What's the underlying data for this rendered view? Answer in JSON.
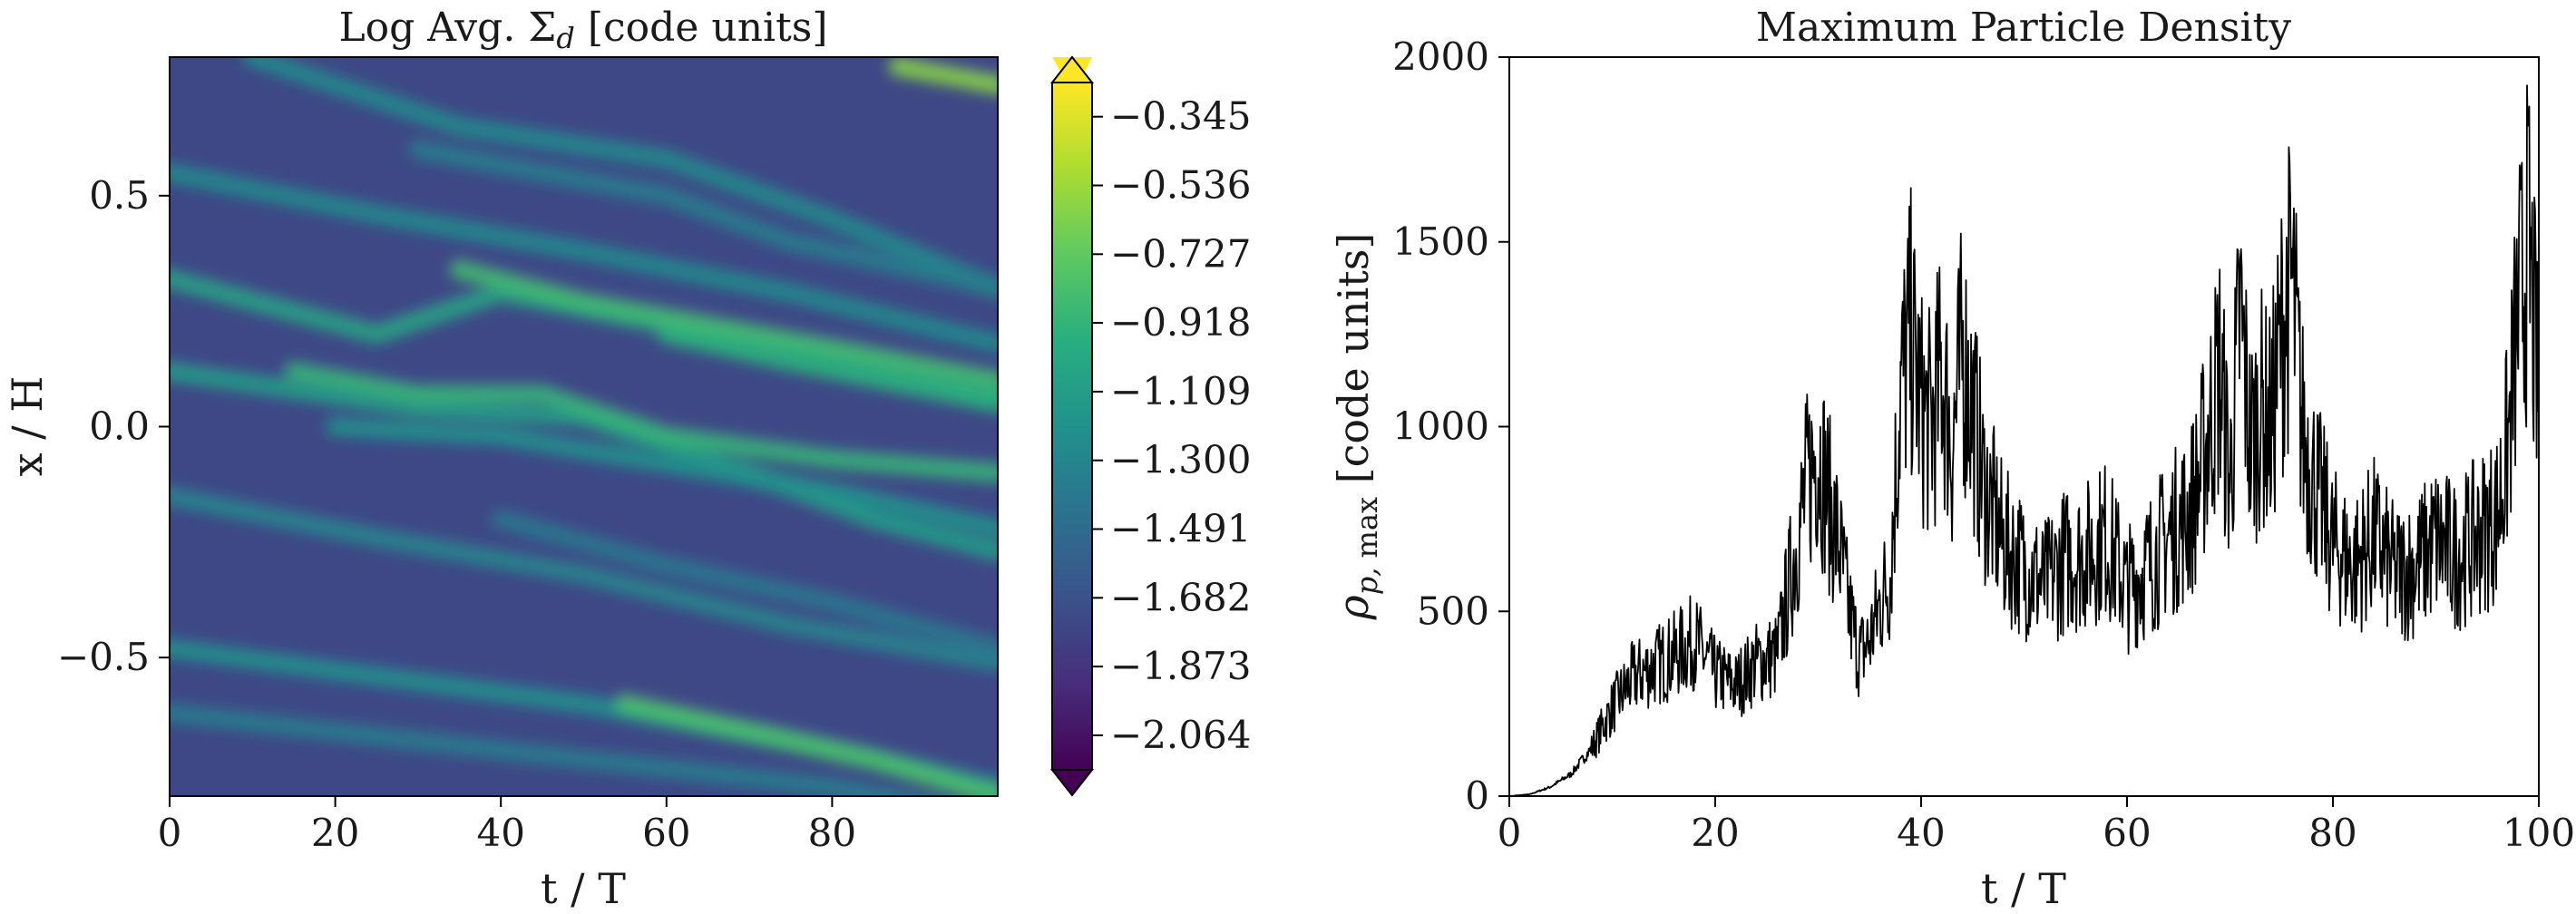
{
  "chart_data": [
    {
      "type": "heatmap",
      "title": "Log Avg. Σ_d [code units]",
      "xlabel": "t / T",
      "ylabel": "x / H",
      "xlim": [
        0,
        100
      ],
      "ylim": [
        -0.8,
        0.8
      ],
      "xticks": [
        "0",
        "20",
        "40",
        "60",
        "80"
      ],
      "yticks": [
        "0.5",
        "0.0",
        "−0.5"
      ],
      "colormap": "viridis",
      "colorbar": {
        "extend": "both",
        "range": [
          -2.16,
          -0.25
        ],
        "ticks": [
          "−0.345",
          "−0.536",
          "−0.727",
          "−0.918",
          "−1.109",
          "−1.300",
          "−1.491",
          "−1.682",
          "−1.873",
          "−2.064"
        ],
        "tick_values": [
          -0.345,
          -0.536,
          -0.727,
          -0.918,
          -1.109,
          -1.3,
          -1.491,
          -1.682,
          -1.873,
          -2.064
        ]
      },
      "background_value": -1.75,
      "filaments": [
        {
          "t": [
            0,
            25,
            50,
            75,
            100
          ],
          "x": [
            0.55,
            0.46,
            0.38,
            0.29,
            0.18
          ],
          "value": -1.25
        },
        {
          "t": [
            0,
            25,
            40,
            60,
            80,
            100
          ],
          "x": [
            0.32,
            0.2,
            0.29,
            0.22,
            0.15,
            0.07
          ],
          "value": -1.05
        },
        {
          "t": [
            0,
            30,
            50,
            70,
            85,
            100
          ],
          "x": [
            0.12,
            0.04,
            0.02,
            -0.1,
            -0.2,
            -0.27
          ],
          "value": -1.1
        },
        {
          "t": [
            0,
            25,
            50,
            75,
            100
          ],
          "x": [
            -0.15,
            -0.24,
            -0.32,
            -0.43,
            -0.51
          ],
          "value": -1.3
        },
        {
          "t": [
            0,
            25,
            50,
            75,
            100
          ],
          "x": [
            -0.48,
            -0.54,
            -0.6,
            -0.68,
            -0.78
          ],
          "value": -1.2
        },
        {
          "t": [
            10,
            35,
            60,
            80,
            100
          ],
          "x": [
            0.8,
            0.65,
            0.58,
            0.45,
            0.3
          ],
          "value": -1.25
        },
        {
          "t": [
            0,
            20,
            40,
            60,
            80,
            100
          ],
          "x": [
            -0.62,
            -0.66,
            -0.7,
            -0.74,
            -0.78,
            -0.85
          ],
          "value": -1.35
        },
        {
          "t": [
            60,
            75,
            100
          ],
          "x": [
            0.2,
            0.14,
            0.05
          ],
          "value": -0.95
        },
        {
          "t": [
            35,
            50,
            65,
            80,
            100
          ],
          "x": [
            0.34,
            0.27,
            0.22,
            0.17,
            0.1
          ],
          "value": -0.85
        },
        {
          "t": [
            15,
            30,
            45,
            60,
            80,
            100
          ],
          "x": [
            0.12,
            0.07,
            0.07,
            -0.02,
            -0.07,
            -0.1
          ],
          "value": -0.9
        },
        {
          "t": [
            20,
            40,
            60,
            80,
            100
          ],
          "x": [
            0.0,
            -0.02,
            -0.08,
            -0.14,
            -0.22
          ],
          "value": -1.2
        },
        {
          "t": [
            55,
            70,
            85,
            100
          ],
          "x": [
            -0.6,
            -0.66,
            -0.72,
            -0.8
          ],
          "value": -0.8
        },
        {
          "t": [
            88,
            94,
            100
          ],
          "x": [
            0.78,
            0.76,
            0.74
          ],
          "value": -0.6
        },
        {
          "t": [
            30,
            45,
            60,
            75,
            100
          ],
          "x": [
            0.6,
            0.55,
            0.5,
            0.4,
            0.3
          ],
          "value": -1.35
        },
        {
          "t": [
            40,
            60,
            80,
            100
          ],
          "x": [
            -0.2,
            -0.3,
            -0.38,
            -0.48
          ],
          "value": -1.4
        }
      ]
    },
    {
      "type": "line",
      "title": "Maximum Particle Density",
      "xlabel": "t / T",
      "ylabel": "ρ_{p, max} [code units]",
      "xlim": [
        0,
        100
      ],
      "ylim": [
        0,
        2000
      ],
      "xticks": [
        0,
        20,
        40,
        60,
        80,
        100
      ],
      "yticks": [
        0,
        500,
        1000,
        1500,
        2000
      ],
      "series": [
        {
          "color": "#000000",
          "x": [
            0,
            2,
            4,
            6,
            8,
            10,
            12,
            14,
            16,
            18,
            20,
            22,
            24,
            26,
            28,
            29,
            30,
            31,
            32,
            33,
            34,
            35,
            36,
            37,
            38,
            39,
            40,
            41,
            42,
            43,
            44,
            45,
            46,
            48,
            50,
            52,
            54,
            56,
            58,
            60,
            62,
            64,
            66,
            67,
            68,
            69,
            70,
            71,
            72,
            73,
            74,
            75,
            76,
            77,
            78,
            80,
            82,
            84,
            86,
            88,
            90,
            92,
            94,
            96,
            97,
            98,
            99,
            100
          ],
          "y": [
            0,
            5,
            25,
            60,
            130,
            240,
            320,
            350,
            380,
            420,
            330,
            300,
            360,
            380,
            700,
            850,
            950,
            800,
            680,
            500,
            380,
            420,
            520,
            600,
            1100,
            1250,
            1050,
            1000,
            1150,
            950,
            1200,
            1050,
            850,
            680,
            620,
            570,
            640,
            650,
            700,
            560,
            620,
            700,
            760,
            850,
            1000,
            1150,
            850,
            1300,
            950,
            1050,
            1000,
            1250,
            1400,
            1000,
            870,
            680,
            620,
            700,
            600,
            620,
            690,
            650,
            700,
            760,
            950,
            1300,
            1500,
            1050
          ]
        }
      ]
    }
  ]
}
